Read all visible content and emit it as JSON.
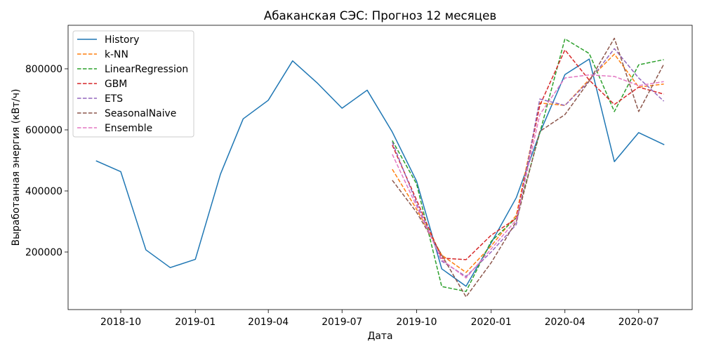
{
  "chart_data": {
    "type": "line",
    "title": "Абаканская СЭС: Прогноз 12 месяцев",
    "xlabel": "Дата",
    "ylabel": "Выработанная энергия (кВт/ч)",
    "x_ticks": [
      "2018-10",
      "2019-01",
      "2019-04",
      "2019-07",
      "2019-10",
      "2020-01",
      "2020-04",
      "2020-07"
    ],
    "y_ticks": [
      "200000",
      "400000",
      "600000",
      "800000"
    ],
    "xlim": [
      "2018-07-28",
      "2020-09-05"
    ],
    "ylim": [
      11500,
      942500
    ],
    "grid": false,
    "legend_position": "upper left",
    "series": [
      {
        "name": "History",
        "color": "#1f77b4",
        "line_style": "solid",
        "x": [
          "2018-09",
          "2018-10",
          "2018-11",
          "2018-12",
          "2019-01",
          "2019-02",
          "2019-03",
          "2019-04",
          "2019-05",
          "2019-06",
          "2019-07",
          "2019-08",
          "2019-09",
          "2019-10",
          "2019-11",
          "2019-12",
          "2020-01",
          "2020-02",
          "2020-03",
          "2020-04",
          "2020-05",
          "2020-06",
          "2020-07",
          "2020-08"
        ],
        "y": [
          498000,
          463000,
          207000,
          149000,
          176000,
          455000,
          636000,
          697000,
          826000,
          752000,
          671000,
          730000,
          593000,
          432000,
          145000,
          88000,
          230000,
          378000,
          590000,
          781000,
          832000,
          496000,
          591000,
          552000
        ]
      },
      {
        "name": "k-NN",
        "color": "#ff7f0e",
        "line_style": "dashed",
        "x": [
          "2019-09",
          "2019-10",
          "2019-11",
          "2019-12",
          "2020-01",
          "2020-02",
          "2020-03",
          "2020-04",
          "2020-05",
          "2020-06",
          "2020-07",
          "2020-08"
        ],
        "y": [
          471000,
          340000,
          190000,
          133000,
          220000,
          320000,
          688000,
          680000,
          765000,
          848000,
          740000,
          750000
        ]
      },
      {
        "name": "LinearRegression",
        "color": "#2ca02c",
        "line_style": "dashed",
        "x": [
          "2019-09",
          "2019-10",
          "2019-11",
          "2019-12",
          "2020-01",
          "2020-02",
          "2020-03",
          "2020-04",
          "2020-05",
          "2020-06",
          "2020-07",
          "2020-08"
        ],
        "y": [
          565000,
          423000,
          87000,
          71000,
          235000,
          312000,
          590000,
          898000,
          850000,
          660000,
          813000,
          830000
        ]
      },
      {
        "name": "GBM",
        "color": "#d62728",
        "line_style": "dashed",
        "x": [
          "2019-09",
          "2019-10",
          "2019-11",
          "2019-12",
          "2020-01",
          "2020-02",
          "2020-03",
          "2020-04",
          "2020-05",
          "2020-06",
          "2020-07",
          "2020-08"
        ],
        "y": [
          550000,
          370000,
          180000,
          175000,
          255000,
          310000,
          680000,
          862000,
          763000,
          683000,
          740000,
          717000
        ]
      },
      {
        "name": "ETS",
        "color": "#9467bd",
        "line_style": "dashed",
        "x": [
          "2019-09",
          "2019-10",
          "2019-11",
          "2019-12",
          "2020-01",
          "2020-02",
          "2020-03",
          "2020-04",
          "2020-05",
          "2020-06",
          "2020-07",
          "2020-08"
        ],
        "y": [
          560000,
          360000,
          170000,
          120000,
          200000,
          290000,
          701000,
          680000,
          760000,
          866000,
          770000,
          694000
        ]
      },
      {
        "name": "SeasonalNaive",
        "color": "#8c564b",
        "line_style": "dashed",
        "x": [
          "2019-09",
          "2019-10",
          "2019-11",
          "2019-12",
          "2020-01",
          "2020-02",
          "2020-03",
          "2020-04",
          "2020-05",
          "2020-06",
          "2020-07",
          "2020-08"
        ],
        "y": [
          435000,
          330000,
          190000,
          53000,
          165000,
          300000,
          595000,
          650000,
          760000,
          900000,
          660000,
          815000
        ]
      },
      {
        "name": "Ensemble",
        "color": "#e377c2",
        "line_style": "dashed",
        "x": [
          "2019-09",
          "2019-10",
          "2019-11",
          "2019-12",
          "2020-01",
          "2020-02",
          "2020-03",
          "2020-04",
          "2020-05",
          "2020-06",
          "2020-07",
          "2020-08"
        ],
        "y": [
          520000,
          350000,
          175000,
          115000,
          210000,
          305000,
          650000,
          770000,
          780000,
          775000,
          745000,
          758000
        ]
      }
    ]
  }
}
